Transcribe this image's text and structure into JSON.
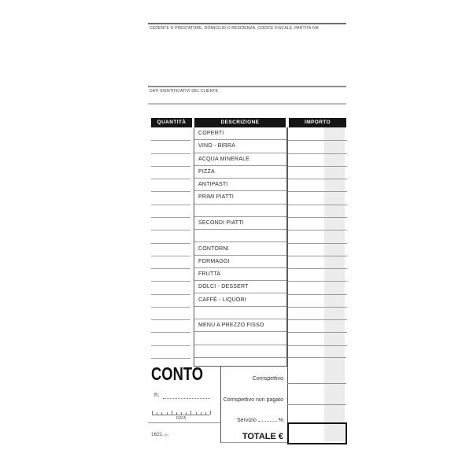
{
  "header": {
    "top_caption": "CEDENTE O PRESTATORE, DOMICILIO O RESIDENZA, CODICE FISCALE, PARTITA IVA",
    "client_caption": "DATI IDENTIFICATIVI DEL CLIENTE"
  },
  "table": {
    "columns": [
      "QUANTITÀ",
      "DESCRIZIONE",
      "IMPORTO"
    ],
    "rows": [
      {
        "descrizione": "COPERTI"
      },
      {
        "descrizione": "VINO - BIRRA"
      },
      {
        "descrizione": "ACQUA MINERALE"
      },
      {
        "descrizione": "PIZZA"
      },
      {
        "descrizione": "ANTIPASTI"
      },
      {
        "descrizione": "PRIMI PIATTI"
      },
      {
        "descrizione": ""
      },
      {
        "descrizione": "SECONDI PIATTI"
      },
      {
        "descrizione": ""
      },
      {
        "descrizione": "CONTORNI"
      },
      {
        "descrizione": "FORMAGGI"
      },
      {
        "descrizione": "FRUTTA"
      },
      {
        "descrizione": "DOLCI - DESSERT"
      },
      {
        "descrizione": "CAFFÈ - LIQUORI"
      },
      {
        "descrizione": ""
      },
      {
        "descrizione": "MENÙ A PREZZO FISSO"
      },
      {
        "descrizione": ""
      },
      {
        "descrizione": ""
      }
    ]
  },
  "footer": {
    "title": "CONTO",
    "number_label": "n.",
    "date_label": "DATA",
    "form_code": "1621",
    "form_code_suffix": "(N)",
    "totals": {
      "corrispettivo_label": "Corrispettivo",
      "non_pagato_label": "Corrispettivo non pagato",
      "servizio_label": "Servizio",
      "percent_label": "%",
      "totale_label": "TOTALE €"
    }
  },
  "colors": {
    "header_bar": "#151515",
    "carbon_strip": "#ececec",
    "row_line": "#9a9a9a"
  }
}
